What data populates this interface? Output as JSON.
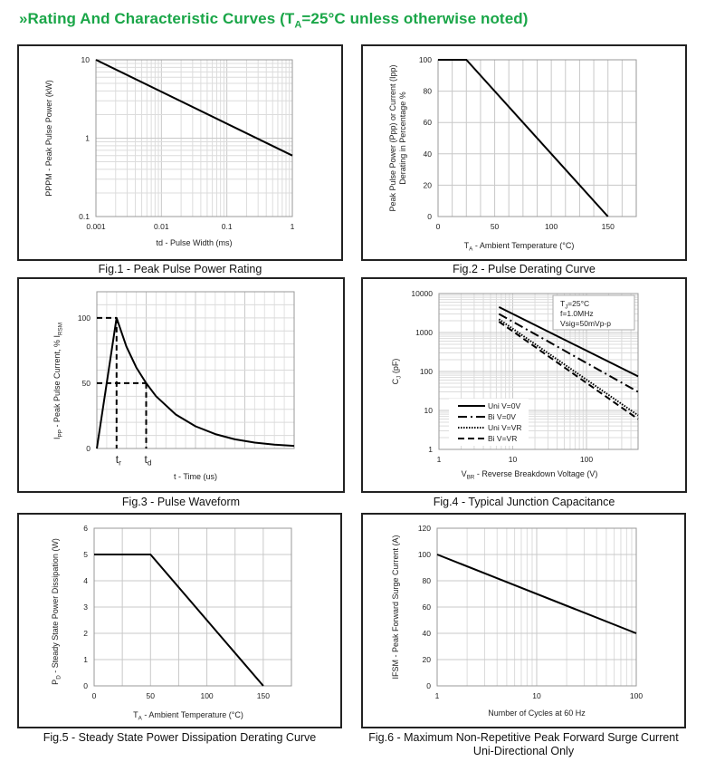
{
  "page": {
    "title_prefix": "»Rating And Characteristic Curves (T",
    "title_sub": "A",
    "title_suffix": "=25°C unless otherwise noted)",
    "title_color": "#1aa648"
  },
  "chart_data": [
    {
      "id": "fig1",
      "type": "line",
      "caption": "Fig.1 - Peak Pulse Power Rating",
      "title": "",
      "xlabel": "td - Pulse Width (ms)",
      "ylabel": "PPPM - Peak Pulse Power (kW)",
      "xscale": "log",
      "yscale": "log",
      "xlim": [
        0.001,
        1
      ],
      "ylim": [
        0.1,
        10
      ],
      "xticks": [
        0.001,
        0.01,
        0.1,
        1
      ],
      "xtick_labels": [
        "0.001",
        "0.01",
        "0.1",
        "1"
      ],
      "yticks": [
        0.1,
        1,
        10
      ],
      "ytick_labels": [
        "0.1",
        "1",
        "10"
      ],
      "grid": true,
      "series": [
        {
          "name": "PPPM",
          "style": "solid",
          "x": [
            0.001,
            1
          ],
          "y": [
            10,
            0.6
          ]
        }
      ]
    },
    {
      "id": "fig2",
      "type": "line",
      "caption": "Fig.2 - Pulse Derating Curve",
      "title": "",
      "xlabel_main": "T",
      "xlabel_sub": "A",
      "xlabel_rest": " - Ambient Temperature (°C)",
      "ylabel_line1": "Peak Pulse Power (Ppp) or Current (Ipp)",
      "ylabel_line2": "Derating in Percentage %",
      "xscale": "linear",
      "yscale": "linear",
      "xlim": [
        0,
        175
      ],
      "ylim": [
        0,
        100
      ],
      "xticks": [
        0,
        50,
        100,
        150
      ],
      "xtick_labels": [
        "0",
        "50",
        "100",
        "150"
      ],
      "yticks": [
        0,
        20,
        40,
        60,
        80,
        100
      ],
      "ytick_labels": [
        "0",
        "20",
        "40",
        "60",
        "80",
        "100"
      ],
      "grid": true,
      "series": [
        {
          "name": "Derating",
          "style": "solid",
          "x": [
            0,
            25,
            150
          ],
          "y": [
            100,
            100,
            0
          ]
        }
      ]
    },
    {
      "id": "fig3",
      "type": "line",
      "caption": "Fig.3 - Pulse Waveform",
      "title": "",
      "xlabel": "t - Time (us)",
      "ylabel_main": "I",
      "ylabel_sub1": "PP",
      "ylabel_mid": " - Peak Pulse Current, % I",
      "ylabel_sub2": "RSM",
      "xscale": "linear",
      "yscale": "linear",
      "xlim": [
        0,
        10
      ],
      "ylim": [
        0,
        120
      ],
      "yticks": [
        0,
        50,
        100
      ],
      "ytick_labels": [
        "0",
        "50",
        "100"
      ],
      "markers": [
        {
          "label": "t",
          "sub": "r",
          "x": 1.0
        },
        {
          "label": "t",
          "sub": "d",
          "x": 2.5
        }
      ],
      "grid": true,
      "series": [
        {
          "name": "Pulse",
          "style": "solid",
          "x": [
            0,
            1.0,
            1.5,
            2.0,
            2.5,
            3.0,
            4.0,
            5.0,
            6.0,
            7.0,
            8.0,
            9.0,
            10.0
          ],
          "y": [
            0,
            100,
            78,
            62,
            50,
            40,
            26,
            17,
            11,
            7,
            4.5,
            3,
            2
          ]
        }
      ]
    },
    {
      "id": "fig4",
      "type": "line",
      "caption": "Fig.4 - Typical Junction Capacitance",
      "title": "",
      "xlabel_main": "V",
      "xlabel_sub": "BR",
      "xlabel_rest": " - Reverse Breakdown Voltage (V)",
      "ylabel_main": "C",
      "ylabel_sub": "J",
      "ylabel_rest": " (pF)",
      "xscale": "log",
      "yscale": "log",
      "xlim": [
        1,
        500
      ],
      "ylim": [
        1,
        10000
      ],
      "xticks": [
        1,
        10,
        100
      ],
      "xtick_labels": [
        "1",
        "10",
        "100"
      ],
      "yticks": [
        1,
        10,
        100,
        1000,
        10000
      ],
      "ytick_labels": [
        "1",
        "10",
        "100",
        "1000",
        "10000"
      ],
      "annotation": [
        "TJ=25°C",
        "f=1.0MHz",
        "Vsig=50mVp-p"
      ],
      "legend_position": "bottom-left",
      "grid": true,
      "series": [
        {
          "name": "Uni V=0V",
          "style": "solid",
          "x": [
            6.5,
            500
          ],
          "y": [
            4500,
            75
          ]
        },
        {
          "name": "Bi V=0V",
          "style": "dashdot",
          "x": [
            6.5,
            500
          ],
          "y": [
            3000,
            30
          ]
        },
        {
          "name": "Uni V=VR",
          "style": "dotted",
          "x": [
            6.5,
            500
          ],
          "y": [
            2200,
            7.5
          ]
        },
        {
          "name": "Bi V=VR",
          "style": "dashed",
          "x": [
            6.5,
            500
          ],
          "y": [
            1900,
            6
          ]
        }
      ]
    },
    {
      "id": "fig5",
      "type": "line",
      "caption": "Fig.5 - Steady State Power Dissipation Derating Curve",
      "title": "",
      "xlabel_main": "T",
      "xlabel_sub": "A",
      "xlabel_rest": " - Ambient Temperature (°C)",
      "ylabel_main": "P",
      "ylabel_sub": "D",
      "ylabel_rest": " - Steady State Power Dissipation (W)",
      "xscale": "linear",
      "yscale": "linear",
      "xlim": [
        0,
        175
      ],
      "ylim": [
        0,
        6
      ],
      "xticks": [
        0,
        50,
        100,
        150
      ],
      "xtick_labels": [
        "0",
        "50",
        "100",
        "150"
      ],
      "yticks": [
        0,
        1,
        2,
        3,
        4,
        5,
        6
      ],
      "ytick_labels": [
        "0",
        "1",
        "2",
        "3",
        "4",
        "5",
        "6"
      ],
      "grid": true,
      "series": [
        {
          "name": "PD",
          "style": "solid",
          "x": [
            0,
            50,
            150
          ],
          "y": [
            5,
            5,
            0
          ]
        }
      ]
    },
    {
      "id": "fig6",
      "type": "line",
      "caption": "Fig.6 - Maximum Non-Repetitive Peak Forward Surge Current",
      "caption2": "Uni-Directional Only",
      "title": "",
      "xlabel": "Number of Cycles at 60 Hz",
      "ylabel": "IFSM - Peak Forward Surge Current (A)",
      "xscale": "log",
      "yscale": "linear",
      "xlim": [
        1,
        100
      ],
      "ylim": [
        0,
        120
      ],
      "xticks": [
        1,
        10,
        100
      ],
      "xtick_labels": [
        "1",
        "10",
        "100"
      ],
      "yticks": [
        0,
        20,
        40,
        60,
        80,
        100,
        120
      ],
      "ytick_labels": [
        "0",
        "20",
        "40",
        "60",
        "80",
        "100",
        "120"
      ],
      "grid": true,
      "series": [
        {
          "name": "IFSM",
          "style": "solid",
          "x": [
            1,
            100
          ],
          "y": [
            100,
            40
          ]
        }
      ]
    }
  ]
}
